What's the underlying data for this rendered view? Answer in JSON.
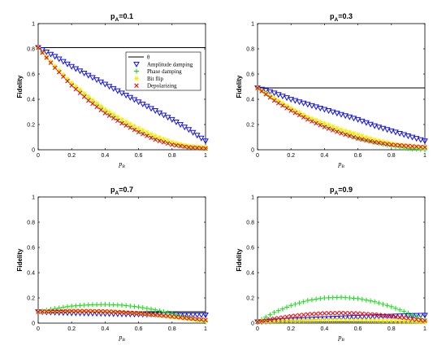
{
  "colors": {
    "theta": "#000000",
    "amplitude": "#1010ee",
    "phase": "#22dd22",
    "bitflip": "#f2ee00",
    "depolarizing": "#ee1111"
  },
  "legend": {
    "entries": [
      {
        "key": "theta",
        "label": "θ",
        "marker": "line"
      },
      {
        "key": "amplitude",
        "label": "Amplitude damping",
        "marker": "triangle-down"
      },
      {
        "key": "phase",
        "label": "Phase damping",
        "marker": "plus"
      },
      {
        "key": "bitflip",
        "label": "Bit flip",
        "marker": "star"
      },
      {
        "key": "depolarizing",
        "label": "Depolarizing",
        "marker": "x"
      }
    ]
  },
  "chart_data": [
    {
      "type": "line",
      "title_main": "p",
      "title_sub": "A",
      "title_rest": "=0.1",
      "xlabel_main": "p",
      "xlabel_sub": "B",
      "ylabel": "Fidelity",
      "xlim": [
        0,
        1
      ],
      "ylim": [
        0,
        1
      ],
      "xticks": [
        "0",
        "0.2",
        "0.4",
        "0.6",
        "0.8",
        "1"
      ],
      "yticks": [
        "0",
        "0.2",
        "0.4",
        "0.6",
        "0.8",
        "1"
      ],
      "has_legend": true,
      "x": [
        0,
        0.1,
        0.2,
        0.3,
        0.4,
        0.5,
        0.6,
        0.7,
        0.8,
        0.9,
        1.0
      ],
      "series": [
        {
          "key": "theta",
          "values": [
            0.81,
            0.81,
            0.81,
            0.81,
            0.81,
            0.81,
            0.81,
            0.81,
            0.81,
            0.81,
            0.81
          ]
        },
        {
          "key": "amplitude",
          "values": [
            0.81,
            0.74,
            0.66,
            0.59,
            0.52,
            0.45,
            0.38,
            0.31,
            0.24,
            0.16,
            0.07
          ]
        },
        {
          "key": "phase",
          "values": [
            0.81,
            0.66,
            0.52,
            0.41,
            0.31,
            0.22,
            0.15,
            0.09,
            0.05,
            0.02,
            0.01
          ]
        },
        {
          "key": "bitflip",
          "values": [
            0.81,
            0.66,
            0.53,
            0.42,
            0.32,
            0.24,
            0.17,
            0.11,
            0.06,
            0.03,
            0.02
          ]
        },
        {
          "key": "depolarizing",
          "values": [
            0.81,
            0.65,
            0.51,
            0.39,
            0.29,
            0.21,
            0.14,
            0.08,
            0.04,
            0.02,
            0.01
          ]
        }
      ]
    },
    {
      "type": "line",
      "title_main": "p",
      "title_sub": "A",
      "title_rest": "=0.3",
      "xlabel_main": "p",
      "xlabel_sub": "B",
      "ylabel": "Fidelity",
      "xlim": [
        0,
        1
      ],
      "ylim": [
        0,
        1
      ],
      "xticks": [
        "0",
        "0.2",
        "0.4",
        "0.6",
        "0.8",
        "1"
      ],
      "yticks": [
        "0",
        "0.2",
        "0.4",
        "0.6",
        "0.8",
        "1"
      ],
      "has_legend": false,
      "x": [
        0,
        0.1,
        0.2,
        0.3,
        0.4,
        0.5,
        0.6,
        0.7,
        0.8,
        0.9,
        1.0
      ],
      "series": [
        {
          "key": "theta",
          "values": [
            0.49,
            0.49,
            0.49,
            0.49,
            0.49,
            0.49,
            0.49,
            0.49,
            0.49,
            0.49,
            0.49
          ]
        },
        {
          "key": "amplitude",
          "values": [
            0.49,
            0.45,
            0.4,
            0.36,
            0.32,
            0.28,
            0.24,
            0.19,
            0.15,
            0.11,
            0.07
          ]
        },
        {
          "key": "phase",
          "values": [
            0.49,
            0.4,
            0.32,
            0.25,
            0.19,
            0.14,
            0.09,
            0.06,
            0.03,
            0.01,
            0.0
          ]
        },
        {
          "key": "bitflip",
          "values": [
            0.49,
            0.41,
            0.33,
            0.26,
            0.21,
            0.16,
            0.12,
            0.08,
            0.05,
            0.03,
            0.02
          ]
        },
        {
          "key": "depolarizing",
          "values": [
            0.49,
            0.39,
            0.31,
            0.24,
            0.18,
            0.13,
            0.09,
            0.06,
            0.04,
            0.03,
            0.02
          ]
        }
      ]
    },
    {
      "type": "line",
      "title_main": "p",
      "title_sub": "A",
      "title_rest": "=0.7",
      "xlabel_main": "p",
      "xlabel_sub": "B",
      "ylabel": "Fidelity",
      "xlim": [
        0,
        1
      ],
      "ylim": [
        0,
        1
      ],
      "xticks": [
        "0",
        "0.2",
        "0.4",
        "0.6",
        "0.8",
        "1"
      ],
      "yticks": [
        "0",
        "0.2",
        "0.4",
        "0.6",
        "0.8",
        "1"
      ],
      "has_legend": false,
      "x": [
        0,
        0.1,
        0.2,
        0.3,
        0.4,
        0.5,
        0.6,
        0.7,
        0.8,
        0.9,
        1.0
      ],
      "series": [
        {
          "key": "theta",
          "values": [
            0.09,
            0.09,
            0.09,
            0.09,
            0.09,
            0.09,
            0.09,
            0.09,
            0.09,
            0.09,
            0.09
          ]
        },
        {
          "key": "amplitude",
          "values": [
            0.09,
            0.085,
            0.08,
            0.078,
            0.075,
            0.072,
            0.07,
            0.068,
            0.066,
            0.065,
            0.065
          ]
        },
        {
          "key": "phase",
          "values": [
            0.09,
            0.115,
            0.135,
            0.145,
            0.148,
            0.143,
            0.128,
            0.105,
            0.075,
            0.04,
            0.01
          ]
        },
        {
          "key": "bitflip",
          "values": [
            0.09,
            0.093,
            0.095,
            0.095,
            0.092,
            0.086,
            0.077,
            0.065,
            0.05,
            0.034,
            0.02
          ]
        },
        {
          "key": "depolarizing",
          "values": [
            0.09,
            0.094,
            0.096,
            0.096,
            0.093,
            0.087,
            0.078,
            0.066,
            0.052,
            0.038,
            0.025
          ]
        }
      ]
    },
    {
      "type": "line",
      "title_main": "p",
      "title_sub": "A",
      "title_rest": "=0.9",
      "xlabel_main": "p",
      "xlabel_sub": "B",
      "ylabel": "Fidelity",
      "xlim": [
        0,
        1
      ],
      "ylim": [
        0,
        1
      ],
      "xticks": [
        "0",
        "0.2",
        "0.4",
        "0.6",
        "0.8",
        "1"
      ],
      "yticks": [
        "0",
        "0.2",
        "0.4",
        "0.6",
        "0.8",
        "1"
      ],
      "has_legend": false,
      "x": [
        0,
        0.1,
        0.2,
        0.3,
        0.4,
        0.5,
        0.6,
        0.7,
        0.8,
        0.9,
        1.0
      ],
      "series": [
        {
          "key": "theta",
          "values": [
            0.01,
            0.01,
            0.01,
            0.01,
            0.01,
            0.01,
            0.01,
            0.01,
            0.01,
            0.01,
            0.01
          ]
        },
        {
          "key": "amplitude",
          "values": [
            0.01,
            0.017,
            0.024,
            0.03,
            0.036,
            0.041,
            0.046,
            0.051,
            0.055,
            0.059,
            0.063
          ]
        },
        {
          "key": "phase",
          "values": [
            0.01,
            0.085,
            0.14,
            0.18,
            0.2,
            0.205,
            0.195,
            0.17,
            0.13,
            0.08,
            0.02
          ]
        },
        {
          "key": "bitflip",
          "values": [
            0.01,
            0.014,
            0.018,
            0.021,
            0.023,
            0.024,
            0.023,
            0.021,
            0.018,
            0.014,
            0.01
          ]
        },
        {
          "key": "depolarizing",
          "values": [
            0.01,
            0.035,
            0.055,
            0.07,
            0.078,
            0.08,
            0.077,
            0.068,
            0.055,
            0.038,
            0.02
          ]
        }
      ]
    }
  ]
}
